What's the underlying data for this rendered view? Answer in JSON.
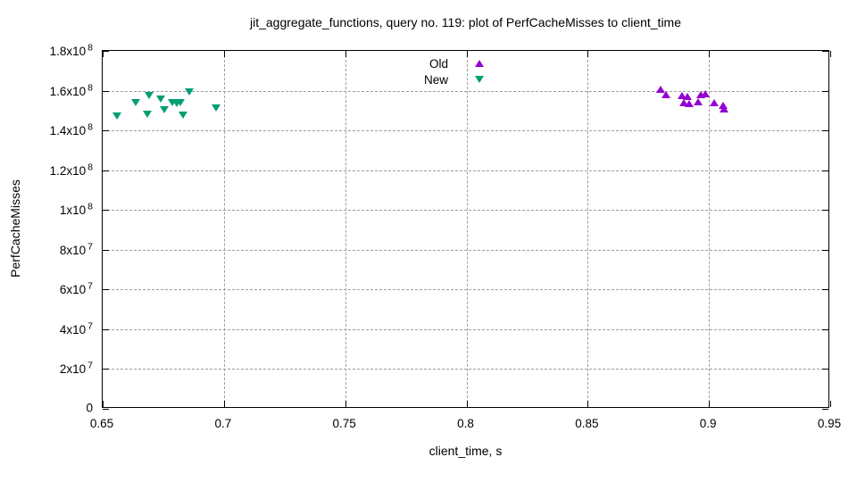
{
  "chart_data": {
    "type": "scatter",
    "title": "jit_aggregate_functions, query no. 119: plot of PerfCacheMisses to client_time",
    "xlabel": "client_time, s",
    "ylabel": "PerfCacheMisses",
    "xlim": [
      0.65,
      0.95
    ],
    "ylim": [
      0,
      180000000
    ],
    "grid": true,
    "grid_color": "#9e9e9e",
    "border_color": "#000000",
    "legend_position": "top-center-inside",
    "x_ticks": [
      {
        "v": 0.65,
        "label": "0.65"
      },
      {
        "v": 0.7,
        "label": "0.7"
      },
      {
        "v": 0.75,
        "label": "0.75"
      },
      {
        "v": 0.8,
        "label": "0.8"
      },
      {
        "v": 0.85,
        "label": "0.85"
      },
      {
        "v": 0.9,
        "label": "0.9"
      },
      {
        "v": 0.95,
        "label": "0.95"
      }
    ],
    "y_ticks": [
      {
        "v": 0,
        "base": "0",
        "exp": ""
      },
      {
        "v": 20000000,
        "base": "2x10",
        "exp": "7"
      },
      {
        "v": 40000000,
        "base": "4x10",
        "exp": "7"
      },
      {
        "v": 60000000,
        "base": "6x10",
        "exp": "7"
      },
      {
        "v": 80000000,
        "base": "8x10",
        "exp": "7"
      },
      {
        "v": 100000000,
        "base": "1x10",
        "exp": "8"
      },
      {
        "v": 120000000,
        "base": "1.2x10",
        "exp": "8"
      },
      {
        "v": 140000000,
        "base": "1.4x10",
        "exp": "8"
      },
      {
        "v": 160000000,
        "base": "1.6x10",
        "exp": "8"
      },
      {
        "v": 180000000,
        "base": "1.8x10",
        "exp": "8"
      }
    ],
    "series": [
      {
        "name": "Old",
        "marker": "triangle-up",
        "color": "#9400d3",
        "points": [
          [
            0.88,
            160700000
          ],
          [
            0.8823,
            157800000
          ],
          [
            0.8889,
            157500000
          ],
          [
            0.891,
            157000000
          ],
          [
            0.8895,
            154000000
          ],
          [
            0.892,
            153600000
          ],
          [
            0.8957,
            154500000
          ],
          [
            0.8966,
            157800000
          ],
          [
            0.8985,
            158600000
          ],
          [
            0.9021,
            154100000
          ],
          [
            0.906,
            152600000
          ],
          [
            0.9062,
            150700000
          ]
        ]
      },
      {
        "name": "New",
        "marker": "triangle-down",
        "color": "#009e73",
        "points": [
          [
            0.656,
            147300000
          ],
          [
            0.6636,
            154000000
          ],
          [
            0.669,
            157500000
          ],
          [
            0.6685,
            148100000
          ],
          [
            0.674,
            155700000
          ],
          [
            0.6755,
            150500000
          ],
          [
            0.6786,
            153900000
          ],
          [
            0.6805,
            153500000
          ],
          [
            0.6822,
            153900000
          ],
          [
            0.6832,
            147700000
          ],
          [
            0.6858,
            159400000
          ],
          [
            0.6967,
            151300000
          ]
        ]
      }
    ]
  }
}
